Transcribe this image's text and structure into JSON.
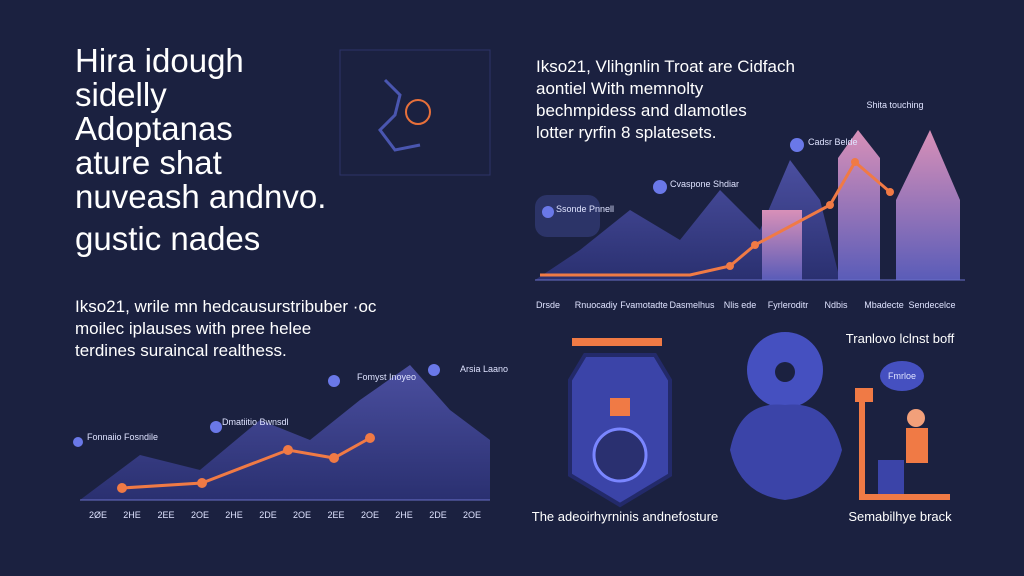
{
  "headline": {
    "lines": [
      "Hira idough",
      "sidelly",
      "Adoptanas",
      "ature shat",
      "nuveash andnvo."
    ],
    "accent": "gustic nades"
  },
  "left_paragraph": [
    "Ikso21, wrile mn hedcausurstribuber ·oc",
    "moilec iplauses with pree helee",
    "terdines suraincal realthess."
  ],
  "left_chart": {
    "labels": [
      "Fonnaiio Fosndile",
      "Dmatiitio Bwnsdl",
      "Fomyst Inoyeo",
      "Arsia Laano"
    ],
    "x_labels": [
      "2ØE",
      "2HE",
      "2EE",
      "2OE",
      "2HE",
      "2DE",
      "2OE",
      "2EE",
      "2OE",
      "2HE",
      "2DE",
      "2OE"
    ]
  },
  "right_paragraph": [
    "Ikso21, Vlihgnlin Troat are Cidfach",
    "aontiel With memnolty",
    "bechmpidess and dlamotles",
    "lotter ryrfin 8 splatesets."
  ],
  "right_chart": {
    "labels": [
      "Shita touching",
      "Cadsr Belde",
      "Cvaspone Shdiar",
      "Ssonde Pnnell"
    ]
  },
  "label_row": [
    "Drsde",
    "Rnuocadiy",
    "Fvamotadte",
    "Dasmelhus",
    "Nlis ede",
    "Fyrleroditr",
    "Ndbis",
    "Mbadecte",
    "Sendecelce"
  ],
  "illustrations": {
    "shield_caption": "The adeoirhyrninis andnefosture",
    "person_title": "Tranlovo lclnst boff",
    "bubble": "Fmrloe",
    "person_caption": "Semabilhye brack"
  }
}
